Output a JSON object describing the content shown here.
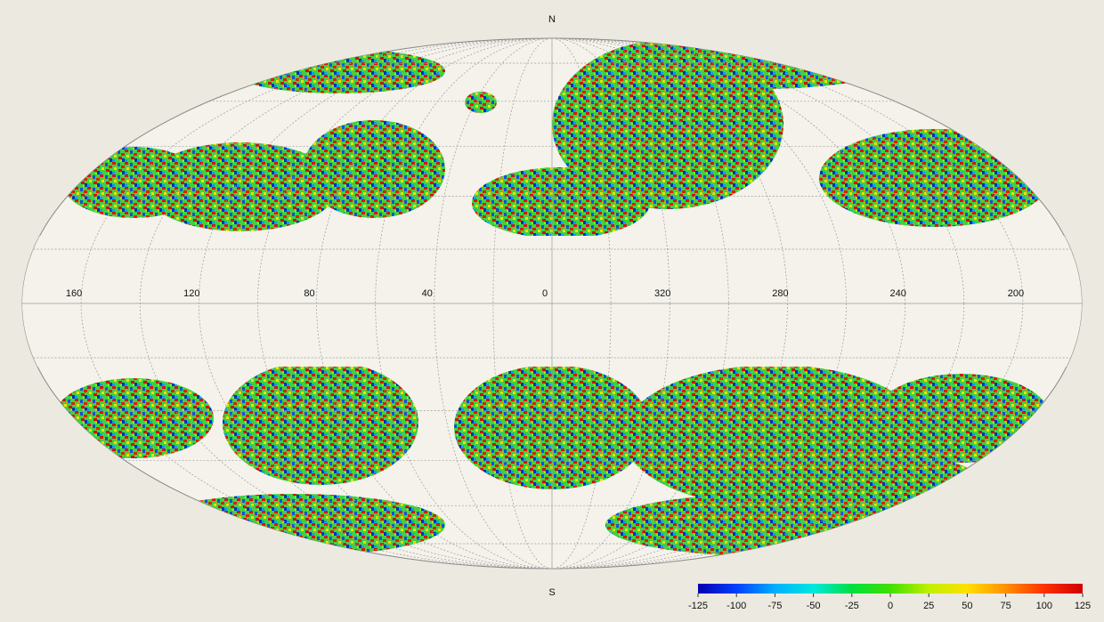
{
  "map": {
    "north": "N",
    "south": "S",
    "longitudes": [
      160,
      120,
      80,
      40,
      0,
      320,
      280,
      240,
      200
    ],
    "colorbar": {
      "lim": [
        -125,
        125
      ],
      "ticks": [
        -125,
        -100,
        -75,
        -50,
        -25,
        0,
        25,
        50,
        75,
        100,
        125
      ],
      "colors": [
        "#0000b0",
        "#0040ff",
        "#00b0ff",
        "#00e8e0",
        "#00e040",
        "#40e000",
        "#c0f000",
        "#ffe000",
        "#ff9000",
        "#ff3000",
        "#d00000"
      ]
    }
  }
}
